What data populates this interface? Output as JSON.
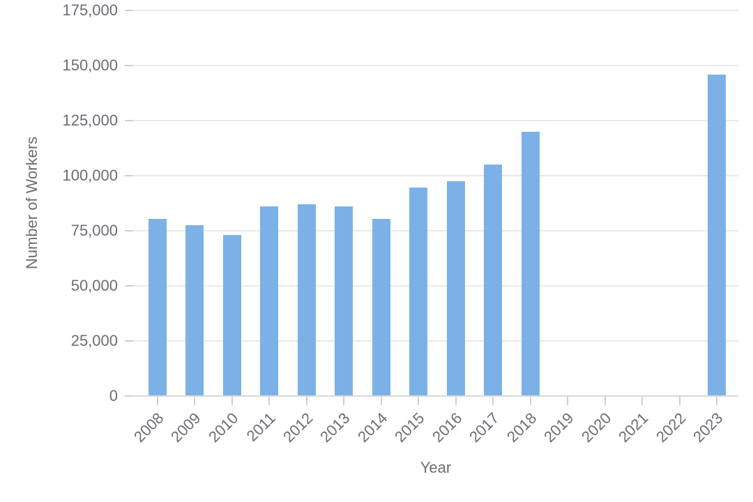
{
  "chart_data": {
    "type": "bar",
    "xlabel": "Year",
    "ylabel": "Number of Workers",
    "categories": [
      "2008",
      "2009",
      "2010",
      "2011",
      "2012",
      "2013",
      "2014",
      "2015",
      "2016",
      "2017",
      "2018",
      "2019",
      "2020",
      "2021",
      "2022",
      "2023"
    ],
    "values": [
      80500,
      77500,
      73000,
      86000,
      87000,
      86000,
      80500,
      94500,
      97500,
      105000,
      120000,
      0,
      0,
      0,
      0,
      146000
    ],
    "ylim": [
      0,
      175000
    ],
    "ytick_values": [
      0,
      25000,
      50000,
      75000,
      100000,
      125000,
      150000,
      175000
    ],
    "ytick_labels": [
      "0",
      "25,000",
      "50,000",
      "75,000",
      "100,000",
      "125,000",
      "150,000",
      "175,000"
    ],
    "grid": "horizontal",
    "legend": "none",
    "colors": {
      "bar": "#7cb1e8",
      "gridline": "#e9e9e9",
      "axis_line": "#d8d8d8",
      "tick": "#cfcfcf",
      "text": "#6c6c75"
    }
  }
}
